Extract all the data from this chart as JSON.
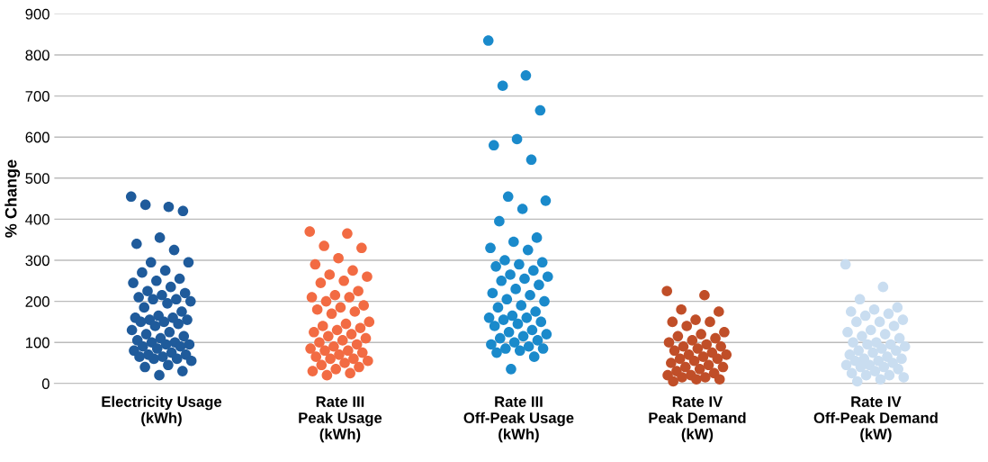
{
  "chart_data": {
    "type": "scatter",
    "ylabel": "% Change",
    "categories": [
      "Electricity Usage\n(kWh)",
      "Rate III\nPeak Usage\n(kWh)",
      "Rate III\nOff-Peak Usage\n(kWh)",
      "Rate IV\nPeak Demand\n(kW)",
      "Rate IV\nOff-Peak Demand\n(kW)"
    ],
    "ylim": [
      0,
      900
    ],
    "yticks": [
      0,
      100,
      200,
      300,
      400,
      500,
      600,
      700,
      800,
      900
    ],
    "grid": "y",
    "marker": "circle",
    "series": [
      {
        "color": "#1f5b9b",
        "x": [
          "Electricity Usage\n(kWh)",
          "Electricity Usage\n(kWh)",
          "Electricity Usage\n(kWh)",
          "Electricity Usage\n(kWh)",
          "Electricity Usage\n(kWh)",
          "Electricity Usage\n(kWh)",
          "Electricity Usage\n(kWh)",
          "Electricity Usage\n(kWh)",
          "Electricity Usage\n(kWh)",
          "Electricity Usage\n(kWh)",
          "Electricity Usage\n(kWh)",
          "Electricity Usage\n(kWh)",
          "Electricity Usage\n(kWh)",
          "Electricity Usage\n(kWh)",
          "Electricity Usage\n(kWh)",
          "Electricity Usage\n(kWh)",
          "Electricity Usage\n(kWh)",
          "Electricity Usage\n(kWh)",
          "Electricity Usage\n(kWh)",
          "Electricity Usage\n(kWh)",
          "Electricity Usage\n(kWh)",
          "Electricity Usage\n(kWh)",
          "Electricity Usage\n(kWh)",
          "Electricity Usage\n(kWh)",
          "Electricity Usage\n(kWh)",
          "Electricity Usage\n(kWh)",
          "Electricity Usage\n(kWh)",
          "Electricity Usage\n(kWh)",
          "Electricity Usage\n(kWh)",
          "Electricity Usage\n(kWh)",
          "Electricity Usage\n(kWh)",
          "Electricity Usage\n(kWh)",
          "Electricity Usage\n(kWh)",
          "Electricity Usage\n(kWh)",
          "Electricity Usage\n(kWh)",
          "Electricity Usage\n(kWh)",
          "Electricity Usage\n(kWh)",
          "Electricity Usage\n(kWh)",
          "Electricity Usage\n(kWh)",
          "Electricity Usage\n(kWh)",
          "Electricity Usage\n(kWh)",
          "Electricity Usage\n(kWh)",
          "Electricity Usage\n(kWh)",
          "Electricity Usage\n(kWh)",
          "Electricity Usage\n(kWh)",
          "Electricity Usage\n(kWh)",
          "Electricity Usage\n(kWh)",
          "Electricity Usage\n(kWh)",
          "Electricity Usage\n(kWh)",
          "Electricity Usage\n(kWh)",
          "Electricity Usage\n(kWh)",
          "Electricity Usage\n(kWh)",
          "Electricity Usage\n(kWh)",
          "Electricity Usage\n(kWh)",
          "Electricity Usage\n(kWh)",
          "Electricity Usage\n(kWh)",
          "Electricity Usage\n(kWh)",
          "Electricity Usage\n(kWh)",
          "Electricity Usage\n(kWh)",
          "Electricity Usage\n(kWh)"
        ],
        "values": [
          455,
          430,
          435,
          420,
          355,
          340,
          325,
          295,
          295,
          275,
          270,
          255,
          250,
          245,
          235,
          225,
          220,
          215,
          210,
          205,
          205,
          200,
          195,
          185,
          175,
          165,
          160,
          160,
          155,
          155,
          150,
          150,
          145,
          140,
          130,
          125,
          120,
          115,
          110,
          105,
          100,
          100,
          95,
          95,
          90,
          90,
          85,
          80,
          75,
          70,
          70,
          65,
          65,
          60,
          60,
          55,
          45,
          40,
          30,
          20
        ]
      },
      {
        "color": "#f26b43",
        "x": [
          "Rate III\nPeak Usage\n(kWh)",
          "Rate III\nPeak Usage\n(kWh)",
          "Rate III\nPeak Usage\n(kWh)",
          "Rate III\nPeak Usage\n(kWh)",
          "Rate III\nPeak Usage\n(kWh)",
          "Rate III\nPeak Usage\n(kWh)",
          "Rate III\nPeak Usage\n(kWh)",
          "Rate III\nPeak Usage\n(kWh)",
          "Rate III\nPeak Usage\n(kWh)",
          "Rate III\nPeak Usage\n(kWh)",
          "Rate III\nPeak Usage\n(kWh)",
          "Rate III\nPeak Usage\n(kWh)",
          "Rate III\nPeak Usage\n(kWh)",
          "Rate III\nPeak Usage\n(kWh)",
          "Rate III\nPeak Usage\n(kWh)",
          "Rate III\nPeak Usage\n(kWh)",
          "Rate III\nPeak Usage\n(kWh)",
          "Rate III\nPeak Usage\n(kWh)",
          "Rate III\nPeak Usage\n(kWh)",
          "Rate III\nPeak Usage\n(kWh)",
          "Rate III\nPeak Usage\n(kWh)",
          "Rate III\nPeak Usage\n(kWh)",
          "Rate III\nPeak Usage\n(kWh)",
          "Rate III\nPeak Usage\n(kWh)",
          "Rate III\nPeak Usage\n(kWh)",
          "Rate III\nPeak Usage\n(kWh)",
          "Rate III\nPeak Usage\n(kWh)",
          "Rate III\nPeak Usage\n(kWh)",
          "Rate III\nPeak Usage\n(kWh)",
          "Rate III\nPeak Usage\n(kWh)",
          "Rate III\nPeak Usage\n(kWh)",
          "Rate III\nPeak Usage\n(kWh)",
          "Rate III\nPeak Usage\n(kWh)",
          "Rate III\nPeak Usage\n(kWh)",
          "Rate III\nPeak Usage\n(kWh)",
          "Rate III\nPeak Usage\n(kWh)",
          "Rate III\nPeak Usage\n(kWh)",
          "Rate III\nPeak Usage\n(kWh)",
          "Rate III\nPeak Usage\n(kWh)",
          "Rate III\nPeak Usage\n(kWh)",
          "Rate III\nPeak Usage\n(kWh)",
          "Rate III\nPeak Usage\n(kWh)",
          "Rate III\nPeak Usage\n(kWh)",
          "Rate III\nPeak Usage\n(kWh)",
          "Rate III\nPeak Usage\n(kWh)",
          "Rate III\nPeak Usage\n(kWh)",
          "Rate III\nPeak Usage\n(kWh)",
          "Rate III\nPeak Usage\n(kWh)",
          "Rate III\nPeak Usage\n(kWh)",
          "Rate III\nPeak Usage\n(kWh)"
        ],
        "values": [
          370,
          365,
          335,
          330,
          305,
          290,
          275,
          265,
          260,
          250,
          245,
          225,
          215,
          210,
          210,
          200,
          190,
          185,
          180,
          175,
          170,
          150,
          145,
          140,
          135,
          130,
          125,
          120,
          115,
          110,
          105,
          100,
          95,
          90,
          85,
          80,
          80,
          75,
          70,
          65,
          60,
          60,
          55,
          50,
          45,
          40,
          35,
          30,
          25,
          20
        ]
      },
      {
        "color": "#1a8acb",
        "x": [
          "Rate III\nOff-Peak Usage\n(kWh)",
          "Rate III\nOff-Peak Usage\n(kWh)",
          "Rate III\nOff-Peak Usage\n(kWh)",
          "Rate III\nOff-Peak Usage\n(kWh)",
          "Rate III\nOff-Peak Usage\n(kWh)",
          "Rate III\nOff-Peak Usage\n(kWh)",
          "Rate III\nOff-Peak Usage\n(kWh)",
          "Rate III\nOff-Peak Usage\n(kWh)",
          "Rate III\nOff-Peak Usage\n(kWh)",
          "Rate III\nOff-Peak Usage\n(kWh)",
          "Rate III\nOff-Peak Usage\n(kWh)",
          "Rate III\nOff-Peak Usage\n(kWh)",
          "Rate III\nOff-Peak Usage\n(kWh)",
          "Rate III\nOff-Peak Usage\n(kWh)",
          "Rate III\nOff-Peak Usage\n(kWh)",
          "Rate III\nOff-Peak Usage\n(kWh)",
          "Rate III\nOff-Peak Usage\n(kWh)",
          "Rate III\nOff-Peak Usage\n(kWh)",
          "Rate III\nOff-Peak Usage\n(kWh)",
          "Rate III\nOff-Peak Usage\n(kWh)",
          "Rate III\nOff-Peak Usage\n(kWh)",
          "Rate III\nOff-Peak Usage\n(kWh)",
          "Rate III\nOff-Peak Usage\n(kWh)",
          "Rate III\nOff-Peak Usage\n(kWh)",
          "Rate III\nOff-Peak Usage\n(kWh)",
          "Rate III\nOff-Peak Usage\n(kWh)",
          "Rate III\nOff-Peak Usage\n(kWh)",
          "Rate III\nOff-Peak Usage\n(kWh)",
          "Rate III\nOff-Peak Usage\n(kWh)",
          "Rate III\nOff-Peak Usage\n(kWh)",
          "Rate III\nOff-Peak Usage\n(kWh)",
          "Rate III\nOff-Peak Usage\n(kWh)",
          "Rate III\nOff-Peak Usage\n(kWh)",
          "Rate III\nOff-Peak Usage\n(kWh)",
          "Rate III\nOff-Peak Usage\n(kWh)",
          "Rate III\nOff-Peak Usage\n(kWh)",
          "Rate III\nOff-Peak Usage\n(kWh)",
          "Rate III\nOff-Peak Usage\n(kWh)",
          "Rate III\nOff-Peak Usage\n(kWh)",
          "Rate III\nOff-Peak Usage\n(kWh)",
          "Rate III\nOff-Peak Usage\n(kWh)",
          "Rate III\nOff-Peak Usage\n(kWh)",
          "Rate III\nOff-Peak Usage\n(kWh)",
          "Rate III\nOff-Peak Usage\n(kWh)",
          "Rate III\nOff-Peak Usage\n(kWh)",
          "Rate III\nOff-Peak Usage\n(kWh)",
          "Rate III\nOff-Peak Usage\n(kWh)",
          "Rate III\nOff-Peak Usage\n(kWh)",
          "Rate III\nOff-Peak Usage\n(kWh)",
          "Rate III\nOff-Peak Usage\n(kWh)",
          "Rate III\nOff-Peak Usage\n(kWh)",
          "Rate III\nOff-Peak Usage\n(kWh)",
          "Rate III\nOff-Peak Usage\n(kWh)",
          "Rate III\nOff-Peak Usage\n(kWh)",
          "Rate III\nOff-Peak Usage\n(kWh)"
        ],
        "values": [
          835,
          750,
          725,
          665,
          595,
          580,
          545,
          455,
          445,
          425,
          395,
          355,
          345,
          330,
          325,
          300,
          295,
          290,
          285,
          275,
          265,
          260,
          255,
          250,
          240,
          230,
          220,
          215,
          205,
          200,
          190,
          185,
          175,
          165,
          160,
          160,
          155,
          150,
          145,
          140,
          130,
          125,
          120,
          115,
          110,
          105,
          100,
          95,
          90,
          85,
          85,
          80,
          75,
          65,
          35
        ]
      },
      {
        "color": "#c04e28",
        "x": [
          "Rate IV\nPeak Demand\n(kW)",
          "Rate IV\nPeak Demand\n(kW)",
          "Rate IV\nPeak Demand\n(kW)",
          "Rate IV\nPeak Demand\n(kW)",
          "Rate IV\nPeak Demand\n(kW)",
          "Rate IV\nPeak Demand\n(kW)",
          "Rate IV\nPeak Demand\n(kW)",
          "Rate IV\nPeak Demand\n(kW)",
          "Rate IV\nPeak Demand\n(kW)",
          "Rate IV\nPeak Demand\n(kW)",
          "Rate IV\nPeak Demand\n(kW)",
          "Rate IV\nPeak Demand\n(kW)",
          "Rate IV\nPeak Demand\n(kW)",
          "Rate IV\nPeak Demand\n(kW)",
          "Rate IV\nPeak Demand\n(kW)",
          "Rate IV\nPeak Demand\n(kW)",
          "Rate IV\nPeak Demand\n(kW)",
          "Rate IV\nPeak Demand\n(kW)",
          "Rate IV\nPeak Demand\n(kW)",
          "Rate IV\nPeak Demand\n(kW)",
          "Rate IV\nPeak Demand\n(kW)",
          "Rate IV\nPeak Demand\n(kW)",
          "Rate IV\nPeak Demand\n(kW)",
          "Rate IV\nPeak Demand\n(kW)",
          "Rate IV\nPeak Demand\n(kW)",
          "Rate IV\nPeak Demand\n(kW)",
          "Rate IV\nPeak Demand\n(kW)",
          "Rate IV\nPeak Demand\n(kW)",
          "Rate IV\nPeak Demand\n(kW)",
          "Rate IV\nPeak Demand\n(kW)",
          "Rate IV\nPeak Demand\n(kW)",
          "Rate IV\nPeak Demand\n(kW)",
          "Rate IV\nPeak Demand\n(kW)",
          "Rate IV\nPeak Demand\n(kW)",
          "Rate IV\nPeak Demand\n(kW)",
          "Rate IV\nPeak Demand\n(kW)",
          "Rate IV\nPeak Demand\n(kW)",
          "Rate IV\nPeak Demand\n(kW)",
          "Rate IV\nPeak Demand\n(kW)",
          "Rate IV\nPeak Demand\n(kW)"
        ],
        "values": [
          225,
          215,
          180,
          175,
          155,
          150,
          150,
          140,
          125,
          120,
          115,
          110,
          105,
          100,
          95,
          90,
          90,
          85,
          80,
          75,
          70,
          70,
          65,
          60,
          60,
          55,
          50,
          45,
          40,
          40,
          35,
          30,
          25,
          20,
          20,
          15,
          15,
          10,
          10,
          5
        ]
      },
      {
        "color": "#c9ddf0",
        "x": [
          "Rate IV\nOff-Peak Demand\n(kW)",
          "Rate IV\nOff-Peak Demand\n(kW)",
          "Rate IV\nOff-Peak Demand\n(kW)",
          "Rate IV\nOff-Peak Demand\n(kW)",
          "Rate IV\nOff-Peak Demand\n(kW)",
          "Rate IV\nOff-Peak Demand\n(kW)",
          "Rate IV\nOff-Peak Demand\n(kW)",
          "Rate IV\nOff-Peak Demand\n(kW)",
          "Rate IV\nOff-Peak Demand\n(kW)",
          "Rate IV\nOff-Peak Demand\n(kW)",
          "Rate IV\nOff-Peak Demand\n(kW)",
          "Rate IV\nOff-Peak Demand\n(kW)",
          "Rate IV\nOff-Peak Demand\n(kW)",
          "Rate IV\nOff-Peak Demand\n(kW)",
          "Rate IV\nOff-Peak Demand\n(kW)",
          "Rate IV\nOff-Peak Demand\n(kW)",
          "Rate IV\nOff-Peak Demand\n(kW)",
          "Rate IV\nOff-Peak Demand\n(kW)",
          "Rate IV\nOff-Peak Demand\n(kW)",
          "Rate IV\nOff-Peak Demand\n(kW)",
          "Rate IV\nOff-Peak Demand\n(kW)",
          "Rate IV\nOff-Peak Demand\n(kW)",
          "Rate IV\nOff-Peak Demand\n(kW)",
          "Rate IV\nOff-Peak Demand\n(kW)",
          "Rate IV\nOff-Peak Demand\n(kW)",
          "Rate IV\nOff-Peak Demand\n(kW)",
          "Rate IV\nOff-Peak Demand\n(kW)",
          "Rate IV\nOff-Peak Demand\n(kW)",
          "Rate IV\nOff-Peak Demand\n(kW)",
          "Rate IV\nOff-Peak Demand\n(kW)",
          "Rate IV\nOff-Peak Demand\n(kW)",
          "Rate IV\nOff-Peak Demand\n(kW)",
          "Rate IV\nOff-Peak Demand\n(kW)",
          "Rate IV\nOff-Peak Demand\n(kW)",
          "Rate IV\nOff-Peak Demand\n(kW)",
          "Rate IV\nOff-Peak Demand\n(kW)",
          "Rate IV\nOff-Peak Demand\n(kW)",
          "Rate IV\nOff-Peak Demand\n(kW)",
          "Rate IV\nOff-Peak Demand\n(kW)",
          "Rate IV\nOff-Peak Demand\n(kW)",
          "Rate IV\nOff-Peak Demand\n(kW)",
          "Rate IV\nOff-Peak Demand\n(kW)",
          "Rate IV\nOff-Peak Demand\n(kW)",
          "Rate IV\nOff-Peak Demand\n(kW)",
          "Rate IV\nOff-Peak Demand\n(kW)"
        ],
        "values": [
          290,
          235,
          205,
          185,
          180,
          175,
          170,
          165,
          155,
          150,
          150,
          140,
          130,
          125,
          120,
          115,
          110,
          100,
          100,
          95,
          95,
          90,
          85,
          80,
          80,
          75,
          70,
          65,
          60,
          60,
          55,
          55,
          50,
          45,
          45,
          40,
          40,
          35,
          30,
          25,
          20,
          20,
          15,
          10,
          5
        ]
      }
    ]
  }
}
